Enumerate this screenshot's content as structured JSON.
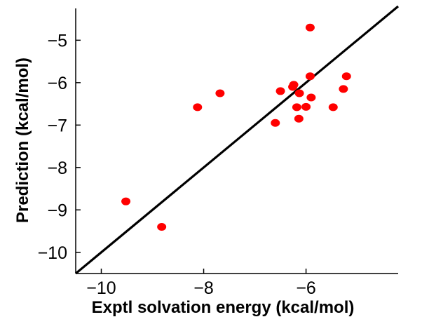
{
  "chart_data": {
    "type": "scatter",
    "title": "",
    "xlabel": "Exptl solvation energy (kcal/mol)",
    "ylabel": "Prediction (kcal/mol)",
    "xlim": [
      -10.5,
      -4.2
    ],
    "ylim": [
      -10.5,
      -4.25
    ],
    "x_ticks": [
      -10,
      -8,
      -6
    ],
    "y_ticks": [
      -10,
      -9,
      -8,
      -7,
      -6,
      -5
    ],
    "x_tick_labels": [
      "−10",
      "−8",
      "−6"
    ],
    "y_tick_labels": [
      "−10",
      "−9",
      "−8",
      "−7",
      "−6",
      "−5"
    ],
    "grid": false,
    "box": "left-bottom",
    "series": [
      {
        "marker_color": "#ff0000",
        "x": [
          -9.52,
          -8.82,
          -8.12,
          -7.68,
          -6.6,
          -6.5,
          -6.26,
          -6.24,
          -6.18,
          -6.14,
          -6.13,
          -6.0,
          -5.92,
          -5.92,
          -5.9,
          -5.47,
          -5.27,
          -5.21
        ],
        "y": [
          -8.8,
          -9.4,
          -6.58,
          -6.25,
          -6.95,
          -6.2,
          -6.1,
          -6.05,
          -6.58,
          -6.85,
          -6.25,
          -6.57,
          -4.7,
          -5.85,
          -6.35,
          -6.58,
          -6.15,
          -5.85
        ]
      }
    ],
    "reference_line": {
      "x": [
        -10.5,
        -4.2
      ],
      "y": [
        -10.5,
        -4.2
      ],
      "color": "#000000"
    }
  }
}
